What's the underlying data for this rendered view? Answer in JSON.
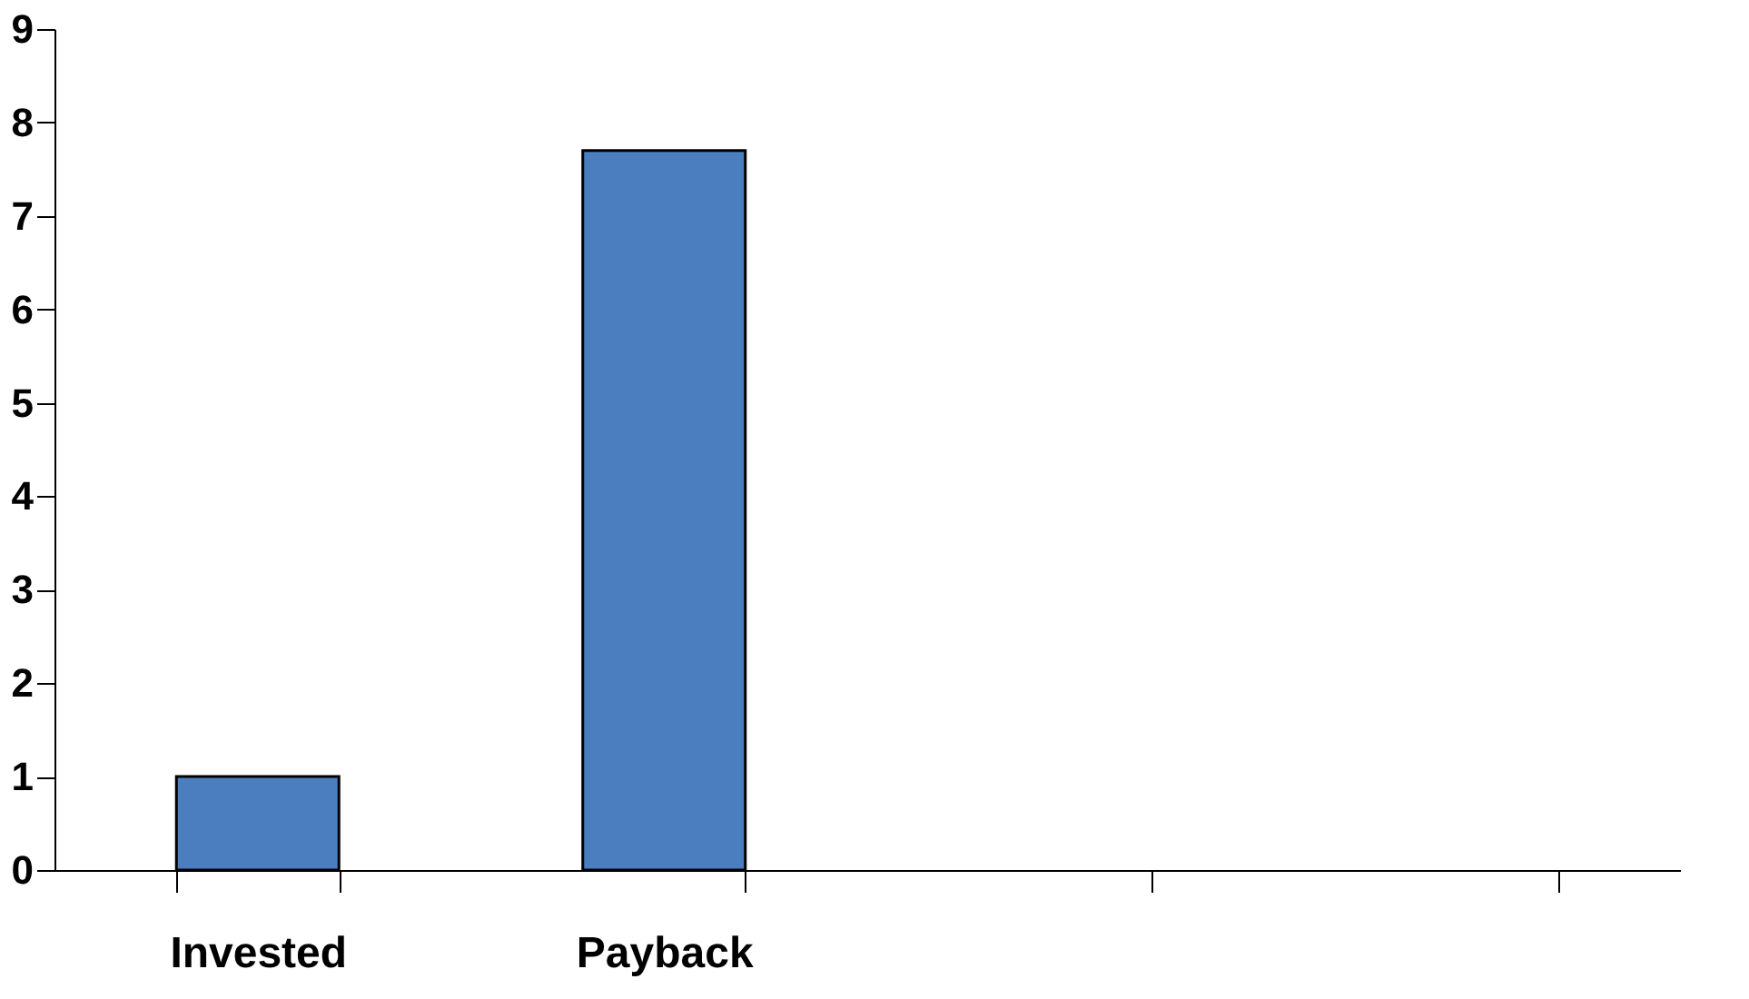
{
  "chart_data": {
    "type": "bar",
    "categories": [
      "Invested",
      "Payback",
      null,
      null
    ],
    "values": [
      1,
      7.7,
      null,
      null
    ],
    "color": "#4a7ebf",
    "ylim": [
      0,
      9
    ],
    "yticks": [
      0,
      1,
      2,
      3,
      4,
      5,
      6,
      7,
      8,
      9
    ],
    "grid": false
  }
}
